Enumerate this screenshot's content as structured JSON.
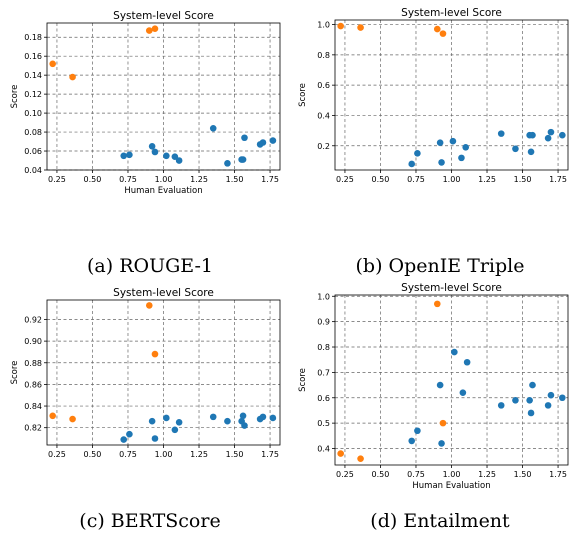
{
  "colors": {
    "blue": "#1f77b4",
    "orange": "#ff7f0e"
  },
  "chart_data": [
    {
      "type": "scatter",
      "title": "System-level Score",
      "xlabel": "Human Evaluation",
      "ylabel": "Score",
      "caption": "(a) ROUGE-1",
      "xlim": [
        0.18,
        1.82
      ],
      "ylim": [
        0.04,
        0.195
      ],
      "xticks": [
        "0.25",
        "0.50",
        "0.75",
        "1.00",
        "1.25",
        "1.50",
        "1.75"
      ],
      "yticks": [
        "0.04",
        "0.06",
        "0.08",
        "0.10",
        "0.12",
        "0.14",
        "0.16",
        "0.18"
      ],
      "grid": true,
      "series": [
        {
          "color": "blue",
          "points": [
            [
              0.72,
              0.055
            ],
            [
              0.76,
              0.056
            ],
            [
              0.92,
              0.065
            ],
            [
              0.94,
              0.059
            ],
            [
              1.02,
              0.055
            ],
            [
              1.08,
              0.054
            ],
            [
              1.11,
              0.05
            ],
            [
              1.35,
              0.084
            ],
            [
              1.45,
              0.047
            ],
            [
              1.55,
              0.051
            ],
            [
              1.56,
              0.051
            ],
            [
              1.57,
              0.074
            ],
            [
              1.68,
              0.067
            ],
            [
              1.7,
              0.069
            ],
            [
              1.77,
              0.071
            ]
          ]
        },
        {
          "color": "orange",
          "points": [
            [
              0.22,
              0.152
            ],
            [
              0.36,
              0.138
            ],
            [
              0.9,
              0.187
            ],
            [
              0.94,
              0.189
            ]
          ]
        }
      ]
    },
    {
      "type": "scatter",
      "title": "System-level Score",
      "xlabel": "",
      "ylabel": "Score",
      "caption": "(b) OpenIE Triple",
      "xlim": [
        0.18,
        1.82
      ],
      "ylim": [
        0.04,
        1.03
      ],
      "xticks": [
        "0.25",
        "0.50",
        "0.75",
        "1.00",
        "1.25",
        "1.50",
        "1.75"
      ],
      "yticks": [
        "0.2",
        "0.4",
        "0.6",
        "0.8",
        "1.0"
      ],
      "grid": true,
      "series": [
        {
          "color": "blue",
          "points": [
            [
              0.72,
              0.08
            ],
            [
              0.76,
              0.15
            ],
            [
              0.92,
              0.22
            ],
            [
              0.93,
              0.09
            ],
            [
              1.01,
              0.23
            ],
            [
              1.07,
              0.12
            ],
            [
              1.1,
              0.19
            ],
            [
              1.35,
              0.28
            ],
            [
              1.45,
              0.18
            ],
            [
              1.55,
              0.27
            ],
            [
              1.56,
              0.16
            ],
            [
              1.57,
              0.27
            ],
            [
              1.68,
              0.25
            ],
            [
              1.7,
              0.29
            ],
            [
              1.78,
              0.27
            ]
          ]
        },
        {
          "color": "orange",
          "points": [
            [
              0.22,
              0.99
            ],
            [
              0.36,
              0.98
            ],
            [
              0.9,
              0.97
            ],
            [
              0.94,
              0.94
            ]
          ]
        }
      ]
    },
    {
      "type": "scatter",
      "title": "System-level Score",
      "xlabel": "",
      "ylabel": "Score",
      "caption": "(c) BERTScore",
      "xlim": [
        0.18,
        1.82
      ],
      "ylim": [
        0.804,
        0.938
      ],
      "xticks": [
        "0.25",
        "0.50",
        "0.75",
        "1.00",
        "1.25",
        "1.50",
        "1.75"
      ],
      "yticks": [
        "0.82",
        "0.84",
        "0.86",
        "0.88",
        "0.90",
        "0.92"
      ],
      "grid": true,
      "series": [
        {
          "color": "blue",
          "points": [
            [
              0.72,
              0.809
            ],
            [
              0.76,
              0.814
            ],
            [
              0.92,
              0.826
            ],
            [
              0.94,
              0.81
            ],
            [
              1.02,
              0.829
            ],
            [
              1.08,
              0.818
            ],
            [
              1.11,
              0.825
            ],
            [
              1.35,
              0.83
            ],
            [
              1.45,
              0.826
            ],
            [
              1.55,
              0.826
            ],
            [
              1.56,
              0.831
            ],
            [
              1.57,
              0.822
            ],
            [
              1.68,
              0.828
            ],
            [
              1.7,
              0.83
            ],
            [
              1.77,
              0.829
            ]
          ]
        },
        {
          "color": "orange",
          "points": [
            [
              0.22,
              0.831
            ],
            [
              0.36,
              0.828
            ],
            [
              0.9,
              0.933
            ],
            [
              0.94,
              0.888
            ]
          ]
        }
      ]
    },
    {
      "type": "scatter",
      "title": "System-level Score",
      "xlabel": "Human Evaluation",
      "ylabel": "Score",
      "caption": "(d) Entailment",
      "xlim": [
        0.18,
        1.82
      ],
      "ylim": [
        0.335,
        1.005
      ],
      "xticks": [
        "0.25",
        "0.50",
        "0.75",
        "1.00",
        "1.25",
        "1.50",
        "1.75"
      ],
      "yticks": [
        "0.4",
        "0.5",
        "0.6",
        "0.7",
        "0.8",
        "0.9",
        "1.0"
      ],
      "grid": true,
      "series": [
        {
          "color": "blue",
          "points": [
            [
              0.72,
              0.43
            ],
            [
              0.76,
              0.47
            ],
            [
              0.92,
              0.65
            ],
            [
              0.93,
              0.42
            ],
            [
              1.02,
              0.78
            ],
            [
              1.08,
              0.62
            ],
            [
              1.11,
              0.74
            ],
            [
              1.35,
              0.57
            ],
            [
              1.45,
              0.59
            ],
            [
              1.55,
              0.59
            ],
            [
              1.56,
              0.54
            ],
            [
              1.57,
              0.65
            ],
            [
              1.68,
              0.57
            ],
            [
              1.7,
              0.61
            ],
            [
              1.78,
              0.6
            ]
          ]
        },
        {
          "color": "orange",
          "points": [
            [
              0.22,
              0.38
            ],
            [
              0.36,
              0.36
            ],
            [
              0.9,
              0.97
            ],
            [
              0.94,
              0.5
            ]
          ]
        }
      ]
    }
  ]
}
